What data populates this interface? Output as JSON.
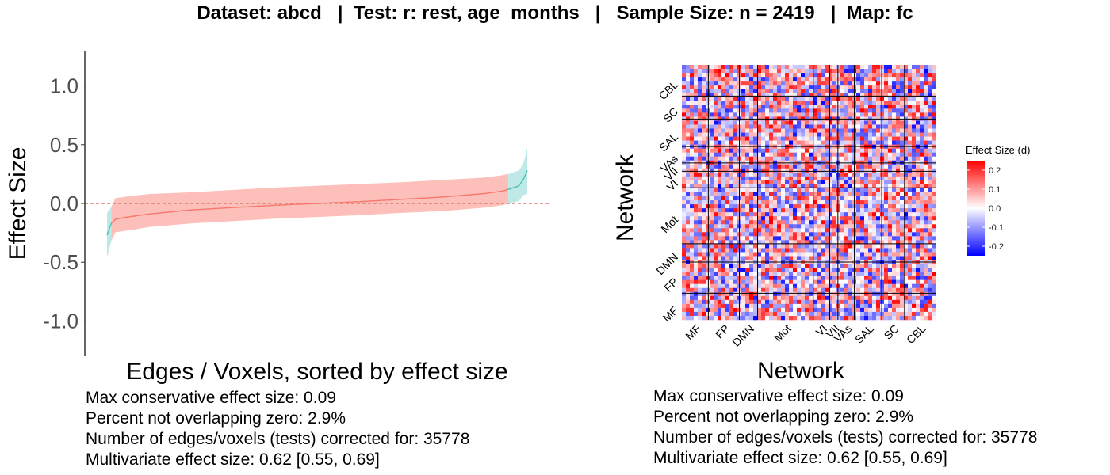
{
  "title": "Dataset: abcd   |  Test: r: rest, age_months   |   Sample Size: n = 2419   |  Map: fc",
  "chart_data": [
    {
      "type": "line",
      "xlabel": "Edges / Voxels, sorted by effect size",
      "ylabel": "Effect Size",
      "ylim": [
        -1.3,
        1.3
      ],
      "yticks": [
        1.0,
        0.5,
        0.0,
        -0.5,
        -1.0
      ],
      "ytick_labels": [
        "1.0",
        "0.5",
        "0.0",
        "-0.5",
        "-1.0"
      ],
      "reference_line": 0.0,
      "curve": {
        "q": [
          0,
          0.01,
          0.02,
          0.04,
          0.06,
          0.1,
          0.2,
          0.3,
          0.4,
          0.5,
          0.6,
          0.7,
          0.8,
          0.9,
          0.94,
          0.96,
          0.98,
          0.99,
          1.0
        ],
        "y": [
          -0.27,
          -0.17,
          -0.135,
          -0.12,
          -0.11,
          -0.09,
          -0.055,
          -0.035,
          -0.015,
          0.0,
          0.015,
          0.035,
          0.055,
          0.085,
          0.105,
          0.125,
          0.15,
          0.2,
          0.28
        ],
        "lower": [
          -0.46,
          -0.32,
          -0.245,
          -0.235,
          -0.225,
          -0.2,
          -0.17,
          -0.15,
          -0.13,
          -0.115,
          -0.1,
          -0.08,
          -0.065,
          -0.035,
          -0.015,
          0.005,
          0.02,
          0.07,
          0.08
        ],
        "upper": [
          -0.08,
          -0.03,
          0.045,
          0.055,
          0.065,
          0.08,
          0.095,
          0.115,
          0.135,
          0.15,
          0.165,
          0.18,
          0.2,
          0.22,
          0.24,
          0.255,
          0.28,
          0.33,
          0.47
        ]
      },
      "overlap_color": "#fcbfb9",
      "nonoverlap_color": "#bfe9e6",
      "line_color_overlap": "#f8766d",
      "line_color_nonoverlap": "#46c2b5",
      "stats": [
        "Max conservative effect size: 0.09",
        "Percent not overlapping zero: 2.9%",
        "Number of edges/voxels (tests) corrected for: 35778",
        "Multivariate effect size: 0.62 [0.55, 0.69]"
      ]
    },
    {
      "type": "heatmap",
      "xlabel": "Network",
      "ylabel": "Network",
      "x_networks": [
        "MF",
        "FP",
        "DMN",
        "Mot",
        "VI",
        "VII",
        "VAs",
        "SAL",
        "SC",
        "CBL"
      ],
      "y_networks_bottom_to_top": [
        "MF",
        "FP",
        "DMN",
        "Mot",
        "VI",
        "VII",
        "VAs",
        "SAL",
        "SC",
        "CBL"
      ],
      "network_sizes": [
        29,
        34,
        20,
        61,
        18,
        9,
        18,
        30,
        25,
        34
      ],
      "legend_title": "Effect Size (d)",
      "legend_ticks": [
        "0.2",
        "0.1",
        "0.0",
        "-0.1",
        "-0.2"
      ],
      "legend_range": [
        -0.25,
        0.25
      ],
      "colors": {
        "low": "#0000ff",
        "mid": "#ffffff",
        "high": "#ff0000"
      },
      "stats": [
        "Max conservative effect size: 0.09",
        "Percent not overlapping zero: 2.9%",
        "Number of edges/voxels (tests) corrected for: 35778",
        "Multivariate effect size: 0.62 [0.55, 0.69]"
      ]
    }
  ]
}
